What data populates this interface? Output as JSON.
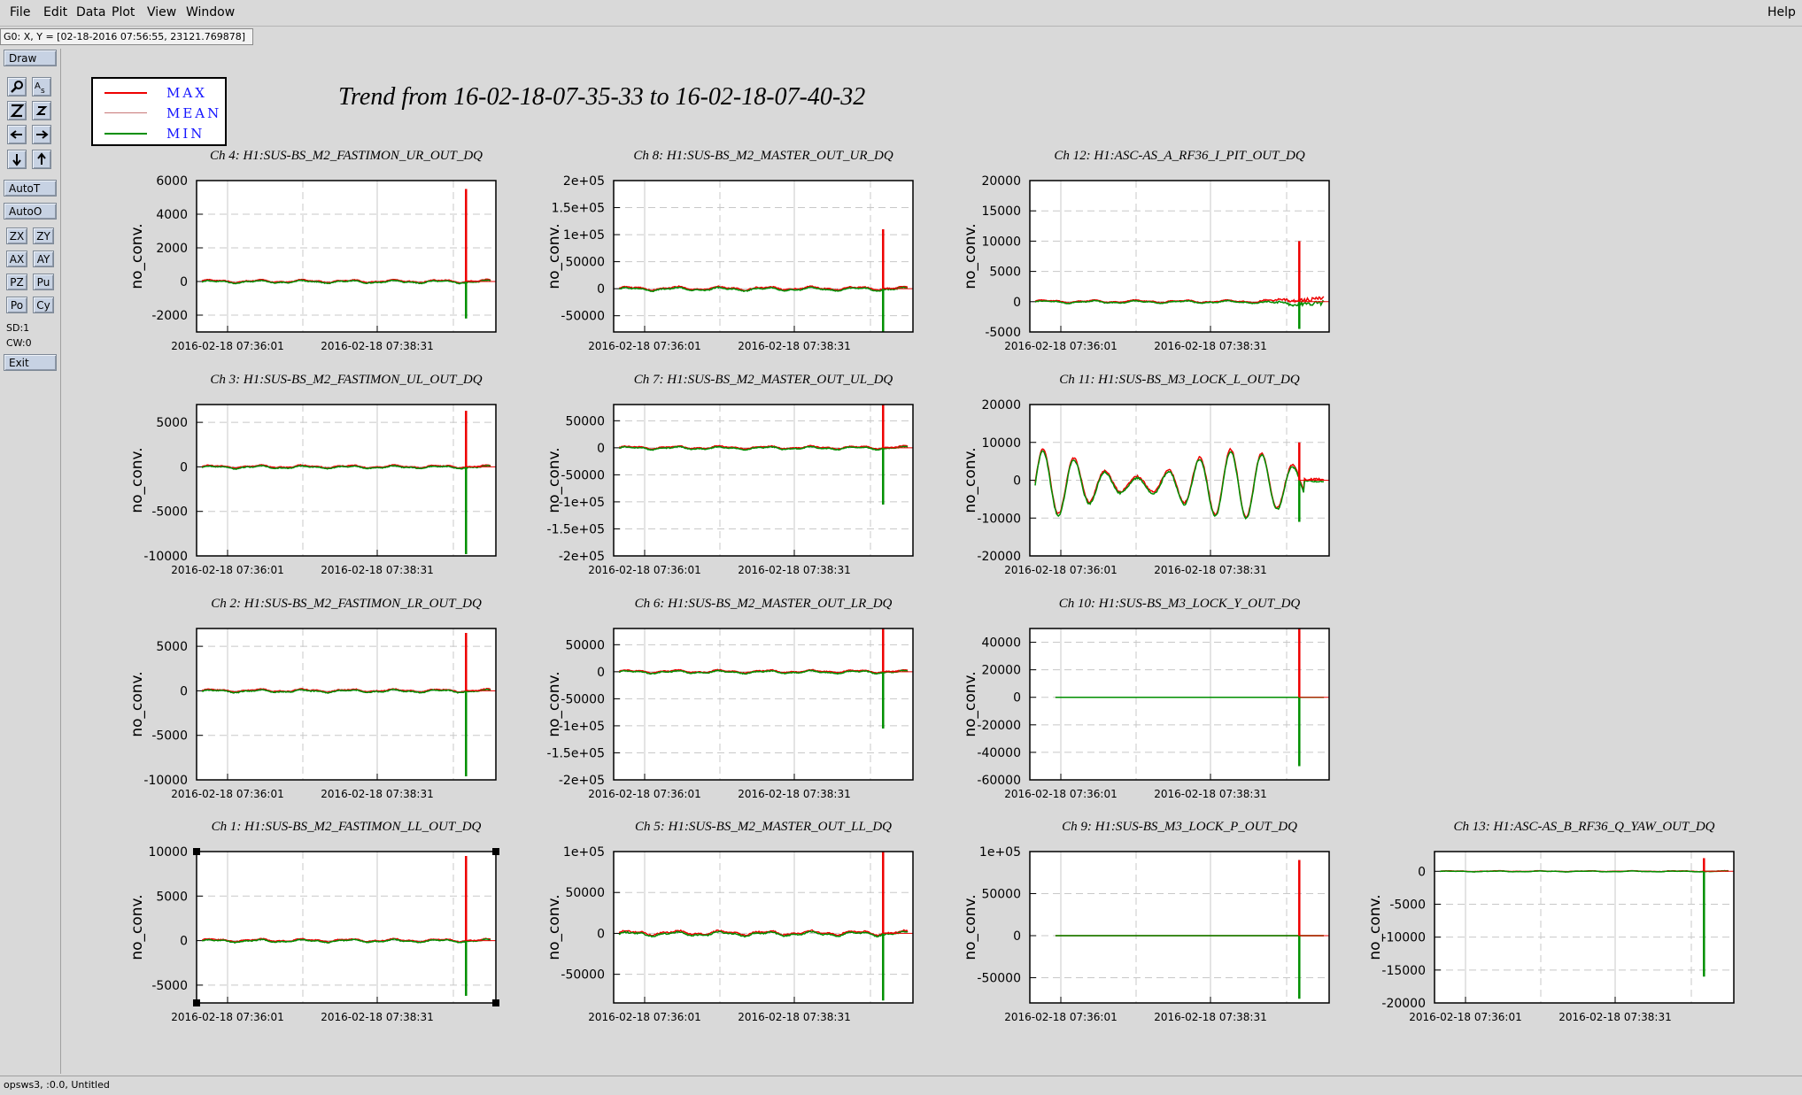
{
  "menu": {
    "file": "File",
    "edit": "Edit",
    "data": "Data",
    "plot": "Plot",
    "view": "View",
    "window": "Window",
    "help": "Help"
  },
  "coord_readout": "G0: X, Y = [02-18-2016 07:56:55, 23121.769878]",
  "toolbar": {
    "draw": "Draw",
    "autoT": "AutoT",
    "autoO": "AutoO",
    "zx": "ZX",
    "zy": "ZY",
    "ax": "AX",
    "ay": "AY",
    "pz": "PZ",
    "pu": "Pu",
    "po": "Po",
    "cy": "Cy",
    "sd": "SD:1",
    "cw": "CW:0",
    "exit": "Exit",
    "icons": [
      "magnify-icon",
      "text-size-icon",
      "zoom-in-icon",
      "zoom-out-icon",
      "arrow-left-icon",
      "arrow-right-icon",
      "arrow-down-icon",
      "arrow-up-icon"
    ]
  },
  "status": "opsws3, :0.0, Untitled",
  "colors": {
    "max": "#ee0000",
    "mean": "#c87878",
    "min": "#008f00",
    "legend_text": "#1515ff"
  },
  "chart_data": {
    "title": "Trend from 16-02-18-07-35-33 to 16-02-18-07-40-32",
    "legend": [
      "MAX",
      "MEAN",
      "MIN"
    ],
    "legend_placement": "top-left",
    "type": "line",
    "x_ticks": [
      "2016-02-18 07:36:01",
      "2016-02-18 07:38:31"
    ],
    "ylabel": "no_conv.",
    "grid": true,
    "panels": [
      {
        "title": "Ch 4: H1:SUS-BS_M2_FASTIMON_UR_OUT_DQ",
        "ylim": [
          -3000,
          6000
        ],
        "yticks": [
          6000,
          4000,
          2000,
          0,
          -2000
        ],
        "ytick_labels": [
          "6000",
          "4000",
          "2000",
          "0",
          "-2000"
        ],
        "baseline": 0,
        "wiggle": 80,
        "flat": false,
        "osc": false,
        "spike_pos": 5500,
        "spike_neg": -2200,
        "burst": false
      },
      {
        "title": "Ch 8: H1:SUS-BS_M2_MASTER_OUT_UR_DQ",
        "ylim": [
          -80000,
          200000
        ],
        "yticks": [
          200000,
          150000,
          100000,
          50000,
          0,
          -50000
        ],
        "ytick_labels": [
          "2e+05",
          "1.5e+05",
          "1e+05",
          "50000",
          "0",
          "-50000"
        ],
        "baseline": 0,
        "wiggle": 3000,
        "flat": false,
        "osc": false,
        "spike_pos": 110000,
        "spike_neg": -80000,
        "burst": false
      },
      {
        "title": "Ch 12: H1:ASC-AS_A_RF36_I_PIT_OUT_DQ",
        "ylim": [
          -5000,
          20000
        ],
        "yticks": [
          20000,
          15000,
          10000,
          5000,
          0,
          -5000
        ],
        "ytick_labels": [
          "20000",
          "15000",
          "10000",
          "5000",
          "0",
          "-5000"
        ],
        "baseline": 0,
        "wiggle": 200,
        "flat": false,
        "osc": false,
        "spike_pos": 10000,
        "spike_neg": -4500,
        "burst": true
      },
      {
        "title": "Ch 3: H1:SUS-BS_M2_FASTIMON_UL_OUT_DQ",
        "ylim": [
          -10000,
          7000
        ],
        "yticks": [
          5000,
          0,
          -5000,
          -10000
        ],
        "ytick_labels": [
          "5000",
          "0",
          "-5000",
          "-10000"
        ],
        "baseline": 0,
        "wiggle": 150,
        "flat": false,
        "osc": false,
        "spike_pos": 6300,
        "spike_neg": -9800,
        "burst": false
      },
      {
        "title": "Ch 7: H1:SUS-BS_M2_MASTER_OUT_UL_DQ",
        "ylim": [
          -200000,
          80000
        ],
        "yticks": [
          50000,
          0,
          -50000,
          -100000,
          -150000,
          -200000
        ],
        "ytick_labels": [
          "50000",
          "0",
          "-50000",
          "-1e+05",
          "-1.5e+05",
          "-2e+05"
        ],
        "baseline": 0,
        "wiggle": 2500,
        "flat": false,
        "osc": false,
        "spike_pos": 80000,
        "spike_neg": -105000,
        "burst": false
      },
      {
        "title": "Ch 11: H1:SUS-BS_M3_LOCK_L_OUT_DQ",
        "ylim": [
          -20000,
          20000
        ],
        "yticks": [
          20000,
          10000,
          0,
          -10000,
          -20000
        ],
        "ytick_labels": [
          "20000",
          "10000",
          "0",
          "-10000",
          "-20000"
        ],
        "baseline": 0,
        "wiggle": 0,
        "flat": false,
        "osc": true,
        "spike_pos": 10000,
        "spike_neg": -11000,
        "burst": false
      },
      {
        "title": "Ch 2: H1:SUS-BS_M2_FASTIMON_LR_OUT_DQ",
        "ylim": [
          -10000,
          7000
        ],
        "yticks": [
          5000,
          0,
          -5000,
          -10000
        ],
        "ytick_labels": [
          "5000",
          "0",
          "-5000",
          "-10000"
        ],
        "baseline": 0,
        "wiggle": 150,
        "flat": false,
        "osc": false,
        "spike_pos": 6500,
        "spike_neg": -9600,
        "burst": false
      },
      {
        "title": "Ch 6: H1:SUS-BS_M2_MASTER_OUT_LR_DQ",
        "ylim": [
          -200000,
          80000
        ],
        "yticks": [
          50000,
          0,
          -50000,
          -100000,
          -150000,
          -200000
        ],
        "ytick_labels": [
          "50000",
          "0",
          "-50000",
          "-1e+05",
          "-1.5e+05",
          "-2e+05"
        ],
        "baseline": 0,
        "wiggle": 2500,
        "flat": false,
        "osc": false,
        "spike_pos": 80000,
        "spike_neg": -105000,
        "burst": false
      },
      {
        "title": "Ch 10: H1:SUS-BS_M3_LOCK_Y_OUT_DQ",
        "ylim": [
          -60000,
          50000
        ],
        "yticks": [
          40000,
          20000,
          0,
          -20000,
          -40000,
          -60000
        ],
        "ytick_labels": [
          "40000",
          "20000",
          "0",
          "-20000",
          "-40000",
          "-60000"
        ],
        "baseline": 0,
        "wiggle": 0,
        "flat": true,
        "osc": false,
        "spike_pos": 50000,
        "spike_neg": -50000,
        "burst": false
      },
      {
        "title": "Ch 1: H1:SUS-BS_M2_FASTIMON_LL_OUT_DQ",
        "ylim": [
          -7000,
          10000
        ],
        "yticks": [
          10000,
          5000,
          0,
          -5000
        ],
        "ytick_labels": [
          "10000",
          "5000",
          "0",
          "-5000"
        ],
        "baseline": 0,
        "wiggle": 150,
        "flat": false,
        "osc": false,
        "spike_pos": 9500,
        "spike_neg": -6200,
        "burst": false
      },
      {
        "title": "Ch 5: H1:SUS-BS_M2_MASTER_OUT_LL_DQ",
        "ylim": [
          -85000,
          100000
        ],
        "yticks": [
          100000,
          50000,
          0,
          -50000
        ],
        "ytick_labels": [
          "1e+05",
          "50000",
          "0",
          "-50000"
        ],
        "baseline": 0,
        "wiggle": 2500,
        "flat": false,
        "osc": false,
        "spike_pos": 100000,
        "spike_neg": -82000,
        "burst": false
      },
      {
        "title": "Ch 9: H1:SUS-BS_M3_LOCK_P_OUT_DQ",
        "ylim": [
          -80000,
          100000
        ],
        "yticks": [
          100000,
          50000,
          0,
          -50000
        ],
        "ytick_labels": [
          "1e+05",
          "50000",
          "0",
          "-50000"
        ],
        "baseline": 0,
        "wiggle": 0,
        "flat": true,
        "osc": false,
        "spike_pos": 90000,
        "spike_neg": -75000,
        "burst": false
      },
      {
        "title": "Ch 13: H1:ASC-AS_B_RF36_Q_YAW_OUT_DQ",
        "ylim": [
          -20000,
          3000
        ],
        "yticks": [
          0,
          -5000,
          -10000,
          -15000,
          -20000
        ],
        "ytick_labels": [
          "0",
          "-5000",
          "-10000",
          "-15000",
          "-20000"
        ],
        "baseline": 0,
        "wiggle": 60,
        "flat": false,
        "osc": false,
        "spike_pos": 2000,
        "spike_neg": -16000,
        "burst": false
      }
    ]
  }
}
